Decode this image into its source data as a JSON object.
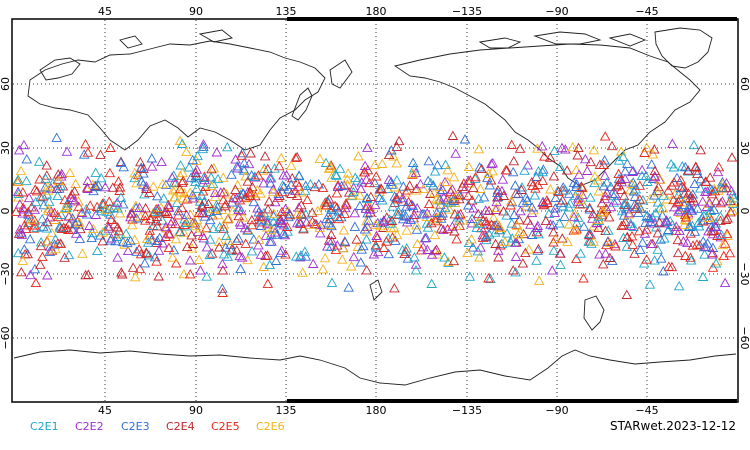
{
  "map": {
    "top_tick_labels": [
      "45",
      "90",
      "135",
      "180",
      "−135",
      "−90",
      "−45"
    ],
    "bottom_tick_labels": [
      "45",
      "90",
      "135",
      "180",
      "−135",
      "−90",
      "−45"
    ],
    "left_tick_labels": [
      "60",
      "30",
      "0",
      "−30",
      "−60"
    ],
    "right_tick_labels": [
      "60",
      "30",
      "0",
      "−30",
      "−60"
    ],
    "grid": "dotted",
    "marker": "open-triangle",
    "legend": [
      {
        "label": "C2E1",
        "color": "#1fa6c9"
      },
      {
        "label": "C2E2",
        "color": "#a12fd0"
      },
      {
        "label": "C2E3",
        "color": "#2f6fd6"
      },
      {
        "label": "C2E4",
        "color": "#c0262d"
      },
      {
        "label": "C2E5",
        "color": "#e8271c"
      },
      {
        "label": "C2E6",
        "color": "#f4b31b"
      }
    ],
    "footer": "STARwet.2023-12-12"
  }
}
